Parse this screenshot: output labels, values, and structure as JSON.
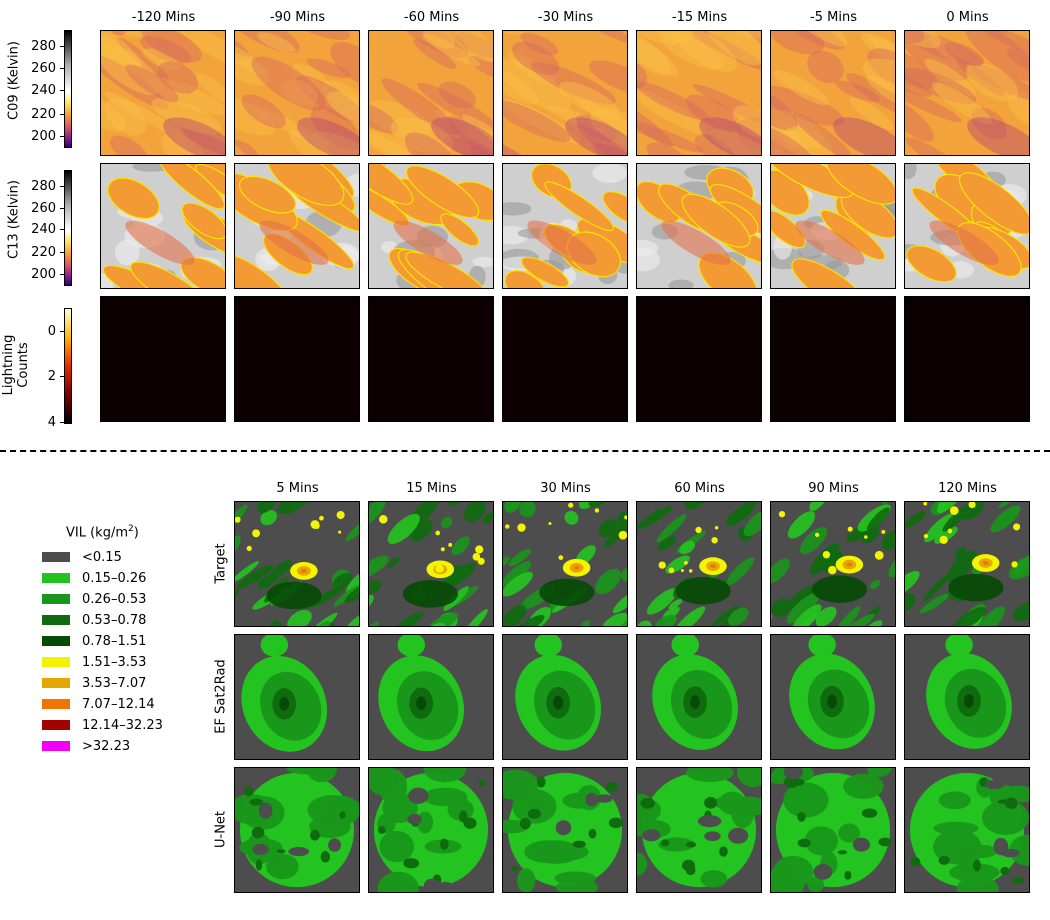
{
  "top_section": {
    "time_titles": [
      "-120 Mins",
      "-90 Mins",
      "-60 Mins",
      "-30 Mins",
      "-15 Mins",
      "-5 Mins",
      "0 Mins"
    ],
    "rows": [
      {
        "label": "C09 (Kelvin)",
        "kind": "c09",
        "colorbar_ticks": [
          "280",
          "260",
          "240",
          "220",
          "200"
        ]
      },
      {
        "label": "C13 (Kelvin)",
        "kind": "c13",
        "colorbar_ticks": [
          "280",
          "260",
          "240",
          "220",
          "200"
        ]
      },
      {
        "label": "Lightning\nCounts",
        "kind": "lightning",
        "colorbar_ticks": [
          "4",
          "2",
          "0"
        ]
      }
    ]
  },
  "bottom_section": {
    "time_titles": [
      "5 Mins",
      "15 Mins",
      "30 Mins",
      "60 Mins",
      "90 Mins",
      "120 Mins"
    ],
    "rows": [
      {
        "label": "Target",
        "kind": "target"
      },
      {
        "label": "EF Sat2Rad",
        "kind": "sat2rad"
      },
      {
        "label": "U-Net",
        "kind": "unet"
      }
    ]
  },
  "legend": {
    "title": "VIL (kg/m",
    "title_sup": "2",
    "title_close": ")",
    "entries": [
      {
        "label": "<0.15",
        "color": "#4d4d4d"
      },
      {
        "label": "0.15–0.26",
        "color": "#23c41f"
      },
      {
        "label": "0.26–0.53",
        "color": "#19971a"
      },
      {
        "label": "0.53–0.78",
        "color": "#0e6b0e"
      },
      {
        "label": "0.78–1.51",
        "color": "#054a06"
      },
      {
        "label": "1.51–3.53",
        "color": "#f4f400"
      },
      {
        "label": "3.53–7.07",
        "color": "#e6a800"
      },
      {
        "label": "7.07–12.14",
        "color": "#f07304"
      },
      {
        "label": "12.14–32.23",
        "color": "#a30101"
      },
      {
        "label": ">32.23",
        "color": "#f100f7"
      }
    ]
  }
}
